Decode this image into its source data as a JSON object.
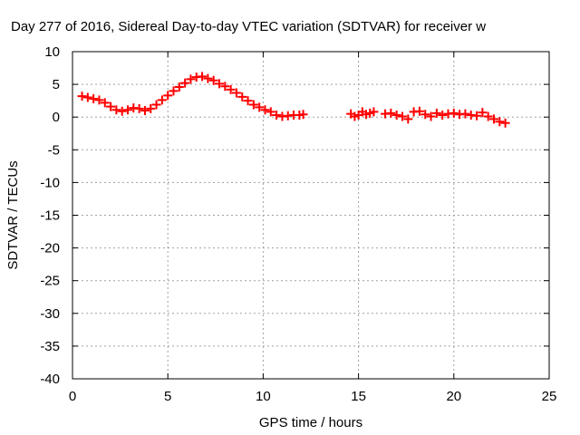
{
  "chart_data": {
    "type": "scatter",
    "title": "Day 277 of 2016, Sidereal Day-to-day VTEC variation (SDTVAR) for receiver w",
    "xlabel": "GPS time / hours",
    "ylabel": "SDTVAR / TECUs",
    "xlim": [
      0,
      25
    ],
    "ylim": [
      -40,
      10
    ],
    "xticks": [
      0,
      5,
      10,
      15,
      20,
      25
    ],
    "yticks": [
      10,
      5,
      0,
      -5,
      -10,
      -15,
      -20,
      -25,
      -30,
      -35,
      -40
    ],
    "xtick_labels": [
      "0",
      "5",
      "10",
      "15",
      "20",
      "25"
    ],
    "ytick_labels": [
      "10",
      "5",
      "0",
      "-5",
      "-10",
      "-15",
      "-20",
      "-25",
      "-30",
      "-35",
      "-40"
    ],
    "grid": true,
    "marker": "plus",
    "color": "#ff0000",
    "series": [
      {
        "name": "SDTVAR",
        "x": [
          0.5,
          0.8,
          1.1,
          1.4,
          1.7,
          2.0,
          2.3,
          2.6,
          2.9,
          3.2,
          3.5,
          3.8,
          4.1,
          4.4,
          4.7,
          5.0,
          5.3,
          5.6,
          5.9,
          6.2,
          6.5,
          6.8,
          7.1,
          7.4,
          7.7,
          8.0,
          8.3,
          8.6,
          8.9,
          9.2,
          9.5,
          9.8,
          10.1,
          10.4,
          10.7,
          11.0,
          11.3,
          11.6,
          11.9,
          12.1,
          14.6,
          14.8,
          15.0,
          15.2,
          15.4,
          15.6,
          15.8,
          16.4,
          16.7,
          17.0,
          17.3,
          17.6,
          17.9,
          18.2,
          18.5,
          18.8,
          19.1,
          19.4,
          19.7,
          20.0,
          20.3,
          20.6,
          20.9,
          21.2,
          21.5,
          21.8,
          22.1,
          22.4,
          22.7
        ],
        "y": [
          3.2,
          3.0,
          2.8,
          2.6,
          2.2,
          1.6,
          1.1,
          0.9,
          1.1,
          1.4,
          1.3,
          1.0,
          1.3,
          1.9,
          2.6,
          3.3,
          4.0,
          4.6,
          5.2,
          5.8,
          6.1,
          6.2,
          5.9,
          5.6,
          5.1,
          4.7,
          4.2,
          3.7,
          3.1,
          2.5,
          1.9,
          1.5,
          1.1,
          0.8,
          0.3,
          0.1,
          0.2,
          0.3,
          0.3,
          0.4,
          0.5,
          0.1,
          0.3,
          0.8,
          0.4,
          0.6,
          0.8,
          0.5,
          0.6,
          0.3,
          0.1,
          -0.3,
          0.8,
          0.9,
          0.4,
          0.1,
          0.6,
          0.3,
          0.5,
          0.6,
          0.4,
          0.5,
          0.3,
          0.2,
          0.7,
          0.1,
          -0.3,
          -0.7,
          -0.9
        ]
      }
    ]
  }
}
